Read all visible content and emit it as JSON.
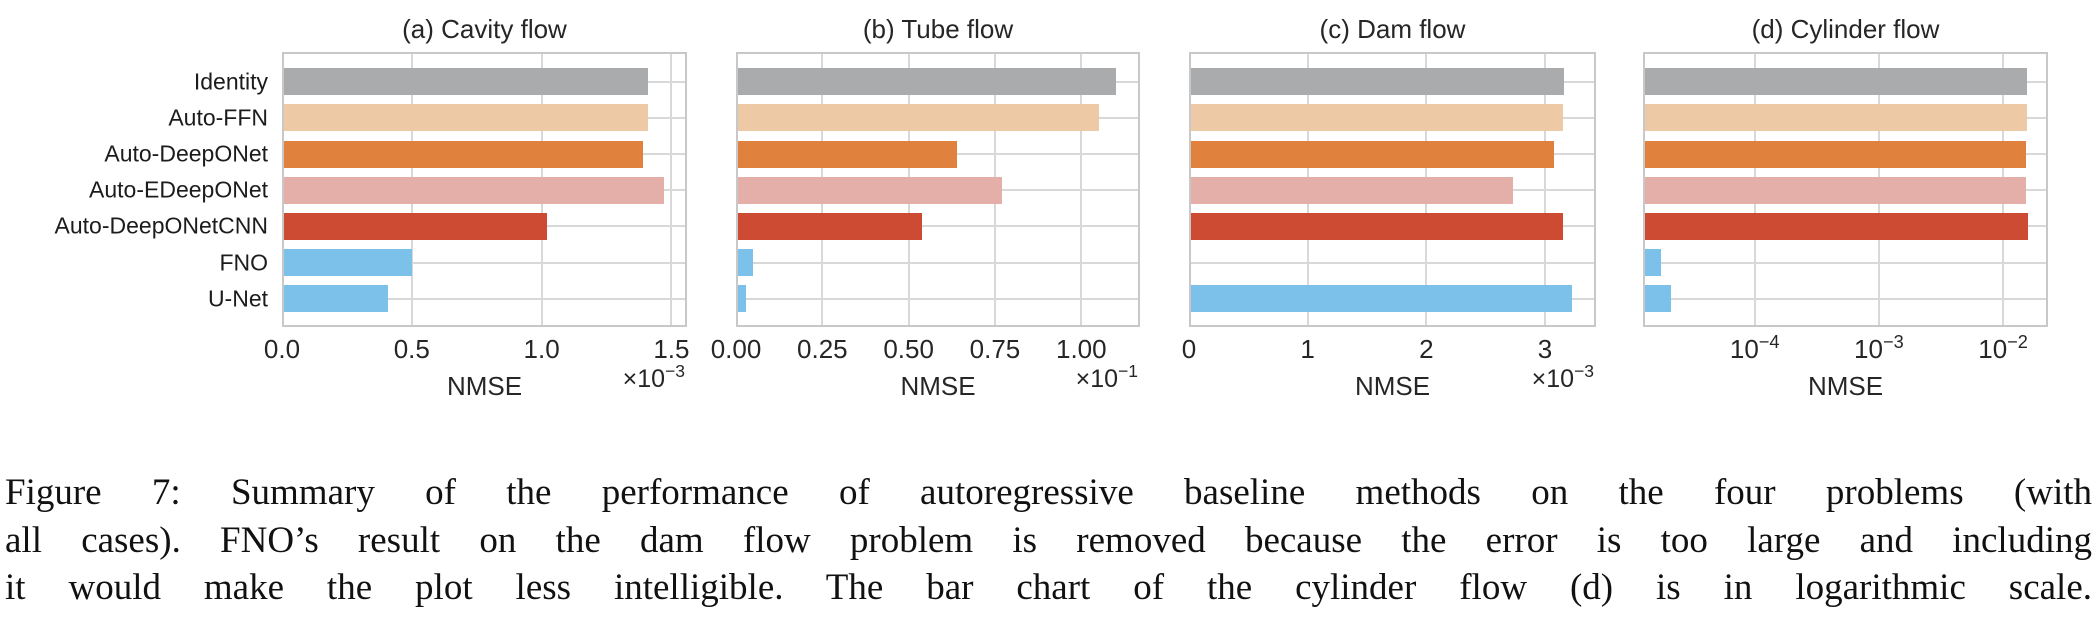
{
  "figure": {
    "categories": [
      "Identity",
      "Auto-FFN",
      "Auto-DeepONet",
      "Auto-EDeepONet",
      "Auto-DeepONetCNN",
      "FNO",
      "U-Net"
    ],
    "bar_colors": [
      "#aaabad",
      "#eec9a5",
      "#e0813e",
      "#e4afa9",
      "#cd4b33",
      "#7bc1e9",
      "#7bc1e9"
    ],
    "grid_color": "#d8d8d8",
    "border_color": "#c8c8c8"
  },
  "chart_data": [
    {
      "type": "bar",
      "orientation": "horizontal",
      "title": "(a) Cavity flow",
      "xlabel": "NMSE",
      "multiplier": "×10^−3",
      "xscale": "linear",
      "xlim": [
        0,
        1.56
      ],
      "grid": true,
      "categories": [
        "Identity",
        "Auto-FFN",
        "Auto-DeepONet",
        "Auto-EDeepONet",
        "Auto-DeepONetCNN",
        "FNO",
        "U-Net"
      ],
      "values": [
        1.41,
        1.41,
        1.39,
        1.47,
        1.02,
        0.5,
        0.41
      ],
      "xticks": [
        {
          "v": 0.0,
          "label": "0.0"
        },
        {
          "v": 0.5,
          "label": "0.5"
        },
        {
          "v": 1.0,
          "label": "1.0"
        },
        {
          "v": 1.5,
          "label": "1.5"
        }
      ]
    },
    {
      "type": "bar",
      "orientation": "horizontal",
      "title": "(b) Tube flow",
      "xlabel": "NMSE",
      "multiplier": "×10^−1",
      "xscale": "linear",
      "xlim": [
        0,
        1.17
      ],
      "grid": true,
      "categories": [
        "Identity",
        "Auto-FFN",
        "Auto-DeepONet",
        "Auto-EDeepONet",
        "Auto-DeepONetCNN",
        "FNO",
        "U-Net"
      ],
      "values": [
        1.1,
        1.05,
        0.64,
        0.77,
        0.54,
        0.05,
        0.03
      ],
      "xticks": [
        {
          "v": 0.0,
          "label": "0.00"
        },
        {
          "v": 0.25,
          "label": "0.25"
        },
        {
          "v": 0.5,
          "label": "0.50"
        },
        {
          "v": 0.75,
          "label": "0.75"
        },
        {
          "v": 1.0,
          "label": "1.00"
        }
      ]
    },
    {
      "type": "bar",
      "orientation": "horizontal",
      "title": "(c) Dam flow",
      "xlabel": "NMSE",
      "multiplier": "×10^−3",
      "xscale": "linear",
      "xlim": [
        0,
        3.43
      ],
      "grid": true,
      "categories": [
        "Identity",
        "Auto-FFN",
        "Auto-DeepONet",
        "Auto-EDeepONet",
        "Auto-DeepONetCNN",
        "FNO",
        "U-Net"
      ],
      "values": [
        3.16,
        3.15,
        3.08,
        2.73,
        3.15,
        null,
        3.23
      ],
      "xticks": [
        {
          "v": 0,
          "label": "0"
        },
        {
          "v": 1,
          "label": "1"
        },
        {
          "v": 2,
          "label": "2"
        },
        {
          "v": 3,
          "label": "3"
        }
      ]
    },
    {
      "type": "bar",
      "orientation": "horizontal",
      "title": "(d) Cylinder flow",
      "xlabel": "NMSE",
      "multiplier": null,
      "xscale": "log",
      "xlim": [
        1.26e-05,
        0.023
      ],
      "grid": true,
      "categories": [
        "Identity",
        "Auto-FFN",
        "Auto-DeepONet",
        "Auto-EDeepONet",
        "Auto-DeepONetCNN",
        "FNO",
        "U-Net"
      ],
      "values": [
        0.0155,
        0.0155,
        0.0154,
        0.0153,
        0.016,
        1.75e-05,
        2.1e-05
      ],
      "xticks": [
        {
          "v": 0.0001,
          "label": "10^−4"
        },
        {
          "v": 0.001,
          "label": "10^−3"
        },
        {
          "v": 0.01,
          "label": "10^−2"
        }
      ]
    }
  ],
  "caption": {
    "lines": [
      "Figure 7: Summary of the performance of autoregressive baseline methods on the four problems (with",
      "all cases). FNO’s result on the dam flow problem is removed because the error is too large and including",
      "it would make the plot less intelligible. The bar chart of the cylinder flow (d) is in logarithmic scale."
    ]
  }
}
